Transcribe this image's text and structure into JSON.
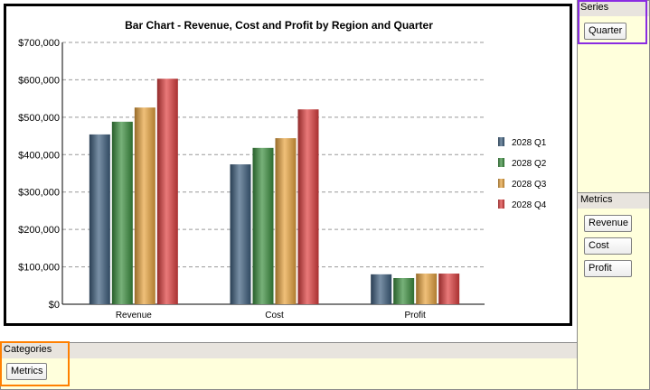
{
  "chart_data": {
    "type": "bar",
    "title": "Bar Chart - Revenue, Cost and Profit by Region and Quarter",
    "categories": [
      "Revenue",
      "Cost",
      "Profit"
    ],
    "series": [
      {
        "name": "2028 Q1",
        "values": [
          454000,
          374000,
          80000
        ],
        "color": "#3f6080"
      },
      {
        "name": "2028 Q2",
        "values": [
          488000,
          418000,
          70000
        ],
        "color": "#3c9040"
      },
      {
        "name": "2028 Q3",
        "values": [
          526000,
          444000,
          82000
        ],
        "color": "#e9a540"
      },
      {
        "name": "2028 Q4",
        "values": [
          603000,
          521000,
          82000
        ],
        "color": "#e04040"
      }
    ],
    "y_ticks": [
      "$0",
      "$100,000",
      "$200,000",
      "$300,000",
      "$400,000",
      "$500,000",
      "$600,000",
      "$700,000"
    ],
    "ylim": [
      0,
      700000
    ],
    "xlabel": "",
    "ylabel": "",
    "grid": true,
    "legend": "right"
  },
  "panels": {
    "series": {
      "title": "Series",
      "items": [
        "Quarter"
      ]
    },
    "metrics": {
      "title": "Metrics",
      "items": [
        "Revenue",
        "Cost",
        "Profit"
      ]
    },
    "categories": {
      "title": "Categories",
      "items": [
        "Metrics"
      ]
    }
  }
}
